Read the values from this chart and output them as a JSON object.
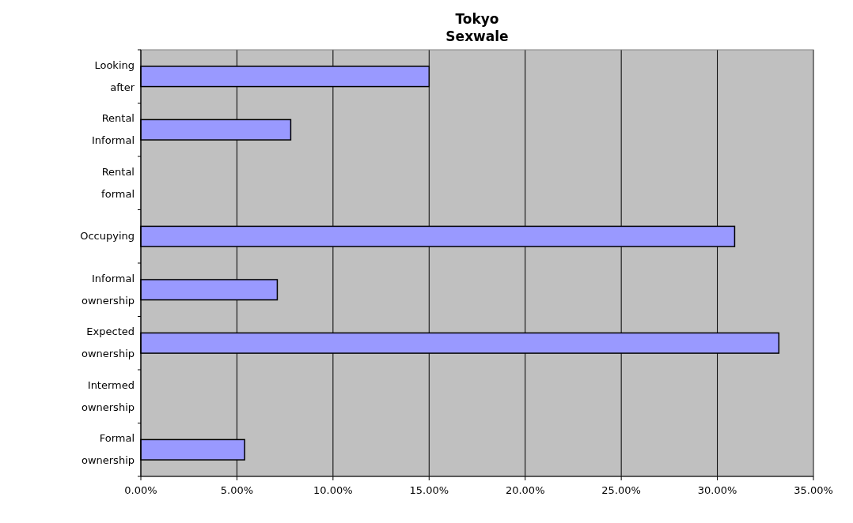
{
  "chart_data": {
    "type": "bar",
    "orientation": "horizontal",
    "title": "Tokyo Sexwale",
    "categories": [
      "Looking after",
      "Rental Informal",
      "Rental formal",
      "Occupying",
      "Informal ownership",
      "Expected ownership",
      "Intermed ownership",
      "Formal ownership"
    ],
    "values": [
      15.0,
      7.8,
      0,
      30.9,
      7.1,
      33.2,
      0,
      5.4
    ],
    "color": "#9999ff",
    "xlim": [
      0,
      35
    ],
    "xticks": [
      {
        "value": 0,
        "label": "0.00%"
      },
      {
        "value": 5,
        "label": "5.00%"
      },
      {
        "value": 10,
        "label": "10.00%"
      },
      {
        "value": 15,
        "label": "15.00%"
      },
      {
        "value": 20,
        "label": "20.00%"
      },
      {
        "value": 25,
        "label": "25.00%"
      },
      {
        "value": 30,
        "label": "30.00%"
      },
      {
        "value": 35,
        "label": "35.00%"
      }
    ],
    "grid": "x"
  }
}
